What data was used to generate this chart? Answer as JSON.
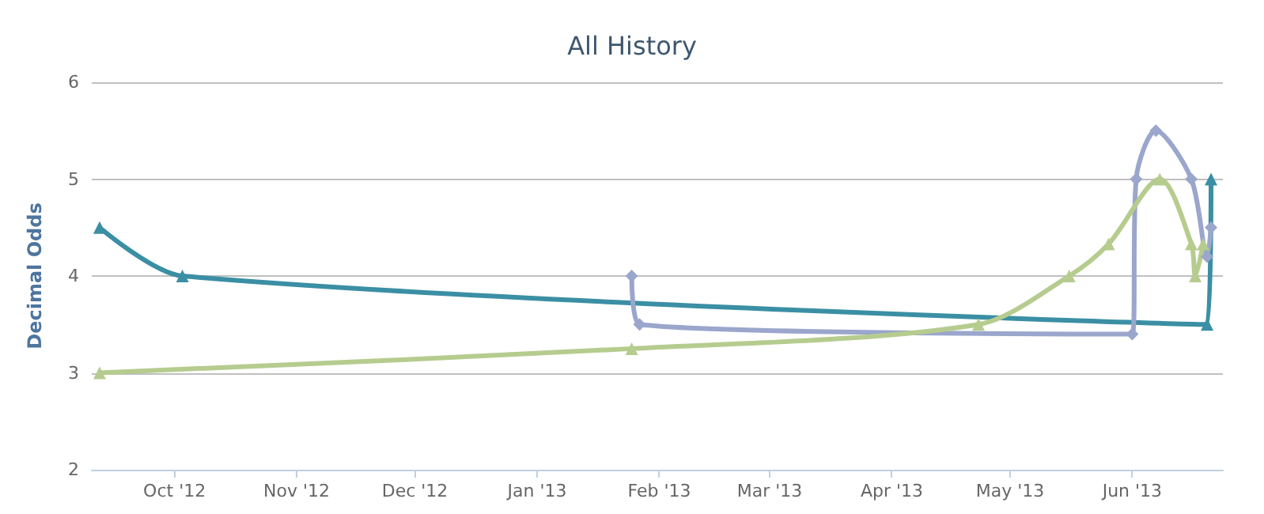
{
  "chart_data": {
    "type": "line",
    "title": "All History",
    "ylabel": "Decimal Odds",
    "ylim": [
      2,
      6
    ],
    "yticks": [
      2,
      3,
      4,
      5,
      6
    ],
    "grid": "y",
    "line_style": "solid",
    "xlim": [
      "2012-09-10",
      "2013-06-24"
    ],
    "xticks": [
      {
        "value": "2012-10-01",
        "label": "Oct '12"
      },
      {
        "value": "2012-11-01",
        "label": "Nov '12"
      },
      {
        "value": "2012-12-01",
        "label": "Dec '12"
      },
      {
        "value": "2013-01-01",
        "label": "Jan '13"
      },
      {
        "value": "2013-02-01",
        "label": "Feb '13"
      },
      {
        "value": "2013-03-01",
        "label": "Mar '13"
      },
      {
        "value": "2013-04-01",
        "label": "Apr '13"
      },
      {
        "value": "2013-05-01",
        "label": "May '13"
      },
      {
        "value": "2013-06-01",
        "label": "Jun '13"
      }
    ],
    "series": [
      {
        "color": "#3b8fa4",
        "marker": "triangle",
        "x": [
          "2012-09-12",
          "2012-10-03",
          "2013-06-20",
          "2013-06-21"
        ],
        "values": [
          4.5,
          4.0,
          3.5,
          5.0
        ]
      },
      {
        "color": "#9aa6cc",
        "marker": "diamond",
        "x": [
          "2013-01-25",
          "2013-01-27",
          "2013-06-01",
          "2013-06-02",
          "2013-06-07",
          "2013-06-16",
          "2013-06-20",
          "2013-06-21"
        ],
        "values": [
          4.0,
          3.5,
          3.4,
          5.0,
          5.5,
          5.0,
          4.2,
          4.5
        ]
      },
      {
        "color": "#b6cc8f",
        "marker": "triangle",
        "x": [
          "2012-09-12",
          "2013-01-25",
          "2013-04-23",
          "2013-05-16",
          "2013-05-26",
          "2013-06-08",
          "2013-06-16",
          "2013-06-17",
          "2013-06-19"
        ],
        "values": [
          3.0,
          3.25,
          3.5,
          4.0,
          4.33,
          5.0,
          4.33,
          4.0,
          4.33
        ]
      }
    ]
  }
}
